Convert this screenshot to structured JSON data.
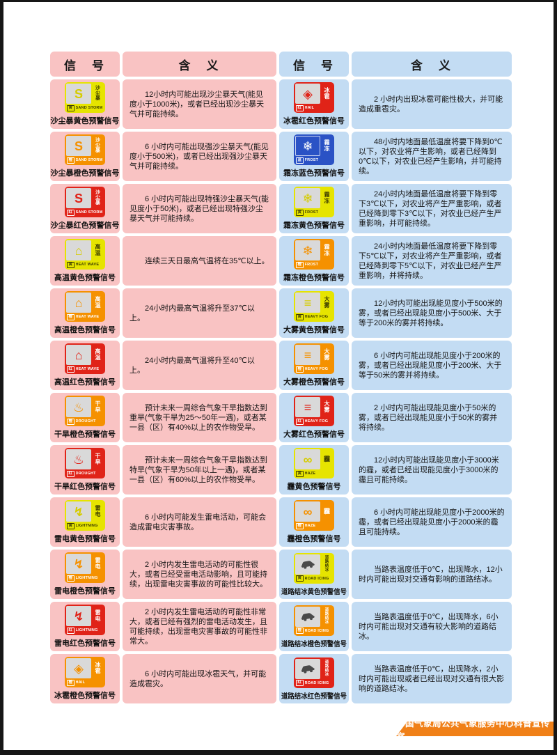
{
  "footer": {
    "label": "中国气象局公共气象服务中心科普宣传室"
  },
  "colors": {
    "left_cell_bg": "#f9c3c3",
    "right_cell_bg": "#c3dcf3",
    "level_yellow": "#e6e400",
    "level_orange": "#f59100",
    "level_red": "#e02318",
    "level_blue": "#2a52c5",
    "ribbon_orange": "#f08018",
    "frame_black": "#161616"
  },
  "tables": [
    {
      "id": "left",
      "header": {
        "signal": "信　号",
        "meaning": "含　义"
      },
      "rows": [
        {
          "name": "沙尘暴黄色预警信号",
          "icon": "sandstorm",
          "type_label": "沙尘暴",
          "level": "yellow",
          "level_char": "黄",
          "en": "SAND STORM",
          "meaning": "12小时内可能出现沙尘暴天气(能见度小于1000米)，或者已经出现沙尘暴天气并可能持续。"
        },
        {
          "name": "沙尘暴橙色预警信号",
          "icon": "sandstorm",
          "type_label": "沙尘暴",
          "level": "orange",
          "level_char": "橙",
          "en": "SAND STORM",
          "meaning": "6 小时内可能出现强沙尘暴天气(能见度小于500米)，或者已经出现强沙尘暴天气并可能持续。"
        },
        {
          "name": "沙尘暴红色预警信号",
          "icon": "sandstorm",
          "type_label": "沙尘暴",
          "level": "red",
          "level_char": "红",
          "en": "SAND STORM",
          "meaning": "6 小时内可能出现特强沙尘暴天气(能见度小于50米)，或者已经出现特强沙尘暴天气并可能持续。"
        },
        {
          "name": "高温黄色预警信号",
          "icon": "heat-wave",
          "type_label": "高温",
          "level": "yellow",
          "level_char": "黄",
          "en": "HEAT WAVE",
          "meaning": "连续三天日最高气温将在35℃以上。"
        },
        {
          "name": "高温橙色预警信号",
          "icon": "heat-wave",
          "type_label": "高温",
          "level": "orange",
          "level_char": "橙",
          "en": "HEAT WAVE",
          "meaning": "24小时内最高气温将升至37℃以上。"
        },
        {
          "name": "高温红色预警信号",
          "icon": "heat-wave",
          "type_label": "高温",
          "level": "red",
          "level_char": "红",
          "en": "HEAT WAVE",
          "meaning": "24小时内最高气温将升至40℃以上。"
        },
        {
          "name": "干旱橙色预警信号",
          "icon": "drought",
          "type_label": "干旱",
          "level": "orange",
          "level_char": "橙",
          "en": "DROUGHT",
          "meaning": "预计未来一周综合气象干旱指数达到重旱(气象干旱为25～50年一遇)，或者某一县（区）有40%以上的农作物受旱。"
        },
        {
          "name": "干旱红色预警信号",
          "icon": "drought",
          "type_label": "干旱",
          "level": "red",
          "level_char": "红",
          "en": "DROUGHT",
          "meaning": "预计未来一周综合气象干旱指数达到特旱(气象干旱为50年以上一遇)，或者某一县（区）有60%以上的农作物受旱。"
        },
        {
          "name": "雷电黄色预警信号",
          "icon": "lightning",
          "type_label": "雷电",
          "level": "yellow",
          "level_char": "黄",
          "en": "LIGHTNING",
          "meaning": "6 小时内可能发生雷电活动，可能会造成雷电灾害事故。"
        },
        {
          "name": "雷电橙色预警信号",
          "icon": "lightning",
          "type_label": "雷电",
          "level": "orange",
          "level_char": "橙",
          "en": "LIGHTNING",
          "meaning": "2 小时内发生雷电活动的可能性很大，或者已经受雷电活动影响，且可能持续，出现雷电灾害事故的可能性比较大。"
        },
        {
          "name": "雷电红色预警信号",
          "icon": "lightning",
          "type_label": "雷电",
          "level": "red",
          "level_char": "红",
          "en": "LIGHTNING",
          "meaning": "2 小时内发生雷电活动的可能性非常大，或者已经有强烈的雷电活动发生，且可能持续，出现雷电灾害事故的可能性非常大。"
        },
        {
          "name": "冰雹橙色预警信号",
          "icon": "hail",
          "type_label": "冰雹",
          "level": "orange",
          "level_char": "橙",
          "en": "HAIL",
          "meaning": "6 小时内可能出现冰雹天气，并可能造成雹灾。"
        }
      ]
    },
    {
      "id": "right",
      "header": {
        "signal": "信　号",
        "meaning": "含　义"
      },
      "rows": [
        {
          "name": "冰雹红色预警信号",
          "icon": "hail",
          "type_label": "冰雹",
          "level": "red",
          "level_char": "红",
          "en": "HAIL",
          "meaning": "2 小时内出现冰雹可能性极大，并可能造成重雹灾。"
        },
        {
          "name": "霜冻蓝色预警信号",
          "icon": "frost",
          "type_label": "霜冻",
          "level": "blue",
          "level_char": "蓝",
          "en": "FROST",
          "meaning": "48小时内地面最低温度将要下降到0℃以下，对农业将产生影响，或者已经降到0℃以下，对农业已经产生影响，并可能持续。"
        },
        {
          "name": "霜冻黄色预警信号",
          "icon": "frost",
          "type_label": "霜冻",
          "level": "yellow",
          "level_char": "黄",
          "en": "FROST",
          "meaning": "24小时内地面最低温度将要下降到零下3℃以下，对农业将产生严重影响，或者已经降到零下3℃以下，对农业已经产生严重影响，并可能持续。"
        },
        {
          "name": "霜冻橙色预警信号",
          "icon": "frost",
          "type_label": "霜冻",
          "level": "orange",
          "level_char": "橙",
          "en": "FROST",
          "meaning": "24小时内地面最低温度将要下降到零下5℃以下，对农业将产生严重影响，或者已经降到零下5℃以下，对农业已经产生严重影响，并将持续。"
        },
        {
          "name": "大雾黄色预警信号",
          "icon": "heavy-fog",
          "type_label": "大雾",
          "level": "yellow",
          "level_char": "黄",
          "en": "HEAVY FOG",
          "meaning": "12小时内可能出现能见度小于500米的雾，或者已经出现能见度小于500米、大于等于200米的雾并将持续。"
        },
        {
          "name": "大雾橙色预警信号",
          "icon": "heavy-fog",
          "type_label": "大雾",
          "level": "orange",
          "level_char": "橙",
          "en": "HEAVY FOG",
          "meaning": "6 小时内可能出现能见度小于200米的雾，或者已经出现能见度小于200米、大于等于50米的雾并将持续。"
        },
        {
          "name": "大雾红色预警信号",
          "icon": "heavy-fog",
          "type_label": "大雾",
          "level": "red",
          "level_char": "红",
          "en": "HEAVY FOG",
          "meaning": "2 小时内可能出现能见度小于50米的雾，或者已经出现能见度小于50米的雾并将持续。"
        },
        {
          "name": "霾黄色预警信号",
          "icon": "haze",
          "type_label": "霾",
          "level": "yellow",
          "level_char": "黄",
          "en": "HAZE",
          "meaning": "12小时内可能出现能见度小于3000米的霾，或者已经出现能见度小于3000米的霾且可能持续。"
        },
        {
          "name": "霾橙色预警信号",
          "icon": "haze",
          "type_label": "霾",
          "level": "orange",
          "level_char": "橙",
          "en": "HAZE",
          "meaning": "6 小时内可能出现能见度小于2000米的霾，或者已经出现能见度小于2000米的霾且可能持续。"
        },
        {
          "name": "道路结冰黄色预警信号",
          "icon": "road-icing",
          "type_label": "道路结冰",
          "level": "yellow",
          "level_char": "黄",
          "en": "ROAD ICING",
          "meaning": "当路表温度低于0℃，出现降水，12小时内可能出现对交通有影响的道路结冰。"
        },
        {
          "name": "道路结冰橙色预警信号",
          "icon": "road-icing",
          "type_label": "道路结冰",
          "level": "orange",
          "level_char": "橙",
          "en": "ROAD ICING",
          "meaning": "当路表温度低于0℃，出现降水，6小时内可能出现对交通有较大影响的道路结冰。"
        },
        {
          "name": "道路结冰红色预警信号",
          "icon": "road-icing",
          "type_label": "道路结冰",
          "level": "red",
          "level_char": "红",
          "en": "ROAD ICING",
          "meaning": "当路表温度低于0℃，出现降水，2小时内可能出现或者已经出现对交通有很大影响的道路结冰。"
        }
      ]
    }
  ]
}
